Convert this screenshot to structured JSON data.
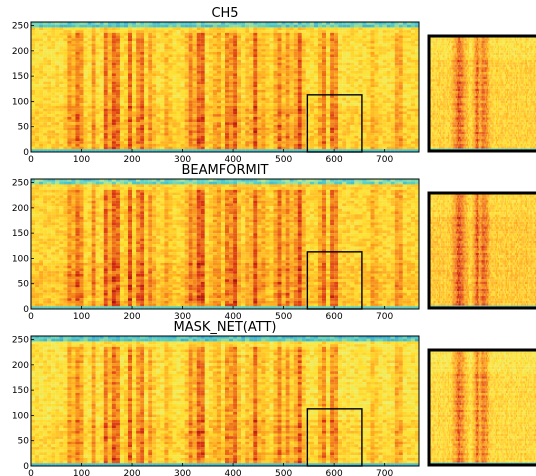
{
  "chart_data": [
    {
      "type": "heatmap",
      "title": "CH5",
      "xlabel": "",
      "ylabel": "",
      "xlim": [
        0,
        768
      ],
      "ylim": [
        0,
        257
      ],
      "x_ticks": [
        0,
        100,
        200,
        300,
        400,
        500,
        600,
        700
      ],
      "y_ticks": [
        0,
        50,
        100,
        150,
        200,
        250
      ],
      "grid": false,
      "zoom_region": {
        "x": [
          547,
          655
        ],
        "y": [
          0,
          113
        ]
      }
    },
    {
      "type": "heatmap",
      "title": "BEAMFORMIT",
      "xlabel": "",
      "ylabel": "",
      "xlim": [
        0,
        768
      ],
      "ylim": [
        0,
        257
      ],
      "x_ticks": [
        0,
        100,
        200,
        300,
        400,
        500,
        600,
        700
      ],
      "y_ticks": [
        0,
        50,
        100,
        150,
        200,
        250
      ],
      "grid": false,
      "zoom_region": {
        "x": [
          547,
          655
        ],
        "y": [
          0,
          113
        ]
      }
    },
    {
      "type": "heatmap",
      "title": "MASK_NET(ATT)",
      "xlabel": "",
      "ylabel": "",
      "xlim": [
        0,
        768
      ],
      "ylim": [
        0,
        257
      ],
      "x_ticks": [
        0,
        100,
        200,
        300,
        400,
        500,
        600,
        700
      ],
      "y_ticks": [
        0,
        50,
        100,
        150,
        200,
        250
      ],
      "grid": false,
      "zoom_region": {
        "x": [
          547,
          655
        ],
        "y": [
          0,
          113
        ]
      }
    }
  ],
  "colors": {
    "colormap": [
      "#2aa0d8",
      "#5cd0c0",
      "#e8f070",
      "#ffe030",
      "#ffb020",
      "#f07818",
      "#d83010",
      "#a01008"
    ],
    "frame": "#000000",
    "text": "#000000"
  }
}
